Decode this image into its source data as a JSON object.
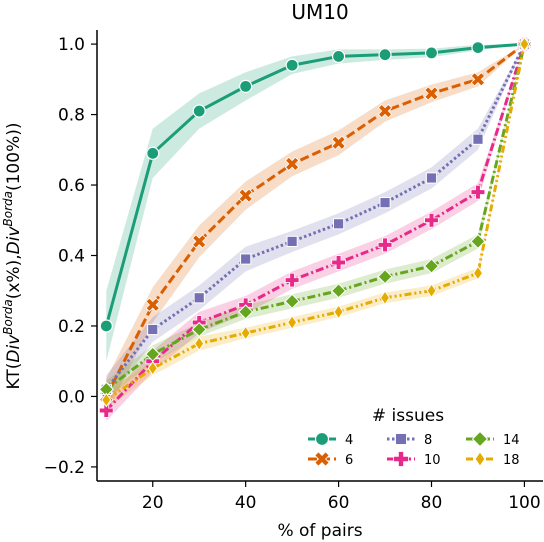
{
  "chart_data": {
    "type": "line",
    "title": "UM10",
    "xlabel": "% of pairs",
    "ylabel_parts": [
      "KT(",
      "Div",
      "Borda",
      "(x%),",
      "Div",
      "Borda",
      "(100%))"
    ],
    "xlim": [
      8,
      104
    ],
    "ylim": [
      -0.24,
      1.04
    ],
    "xticks": [
      20,
      40,
      60,
      80,
      100
    ],
    "xtick_labels": [
      "20",
      "40",
      "60",
      "80",
      "100"
    ],
    "yticks": [
      -0.2,
      0.0,
      0.2,
      0.4,
      0.6,
      0.8,
      1.0
    ],
    "ytick_labels": [
      "−0.2",
      "0.0",
      "0.2",
      "0.4",
      "0.6",
      "0.8",
      "1.0"
    ],
    "grid": false,
    "legend": {
      "title": "# issues",
      "placement": "lower-right"
    },
    "x": [
      10,
      20,
      30,
      40,
      50,
      60,
      70,
      80,
      90,
      100
    ],
    "series": [
      {
        "name": "4",
        "color": "#1b9e77",
        "marker": "circle",
        "dash": "solid",
        "values": [
          0.2,
          0.69,
          0.81,
          0.88,
          0.94,
          0.965,
          0.97,
          0.975,
          0.99,
          1.0
        ],
        "band": [
          0.1,
          0.07,
          0.05,
          0.04,
          0.025,
          0.02,
          0.015,
          0.012,
          0.008,
          0.0
        ]
      },
      {
        "name": "6",
        "color": "#d95f02",
        "marker": "x",
        "dash": "dashed",
        "values": [
          0.0,
          0.26,
          0.44,
          0.57,
          0.66,
          0.72,
          0.81,
          0.86,
          0.9,
          1.0
        ],
        "band": [
          0.05,
          0.05,
          0.045,
          0.04,
          0.035,
          0.035,
          0.03,
          0.025,
          0.02,
          0.0
        ]
      },
      {
        "name": "8",
        "color": "#7570b3",
        "marker": "square",
        "dash": "dotted",
        "values": [
          0.02,
          0.19,
          0.28,
          0.39,
          0.44,
          0.49,
          0.55,
          0.62,
          0.73,
          1.0
        ],
        "band": [
          0.04,
          0.035,
          0.035,
          0.035,
          0.03,
          0.03,
          0.03,
          0.03,
          0.03,
          0.0
        ]
      },
      {
        "name": "10",
        "color": "#e7298a",
        "marker": "plus",
        "dash": "dashdot",
        "values": [
          -0.04,
          0.1,
          0.21,
          0.26,
          0.33,
          0.38,
          0.43,
          0.5,
          0.58,
          1.0
        ],
        "band": [
          0.03,
          0.03,
          0.03,
          0.025,
          0.025,
          0.025,
          0.025,
          0.025,
          0.025,
          0.0
        ]
      },
      {
        "name": "14",
        "color": "#66a61e",
        "marker": "diamond",
        "dash": "dashdot",
        "values": [
          0.02,
          0.12,
          0.19,
          0.24,
          0.27,
          0.3,
          0.34,
          0.37,
          0.44,
          1.0
        ],
        "band": [
          0.025,
          0.025,
          0.02,
          0.02,
          0.02,
          0.02,
          0.02,
          0.02,
          0.02,
          0.0
        ]
      },
      {
        "name": "18",
        "color": "#e6ab02",
        "marker": "diamond-thin",
        "dash": "dashdotdot",
        "values": [
          -0.01,
          0.08,
          0.15,
          0.18,
          0.21,
          0.24,
          0.28,
          0.3,
          0.35,
          1.0
        ],
        "band": [
          0.025,
          0.02,
          0.02,
          0.015,
          0.015,
          0.015,
          0.015,
          0.015,
          0.015,
          0.0
        ]
      }
    ]
  }
}
